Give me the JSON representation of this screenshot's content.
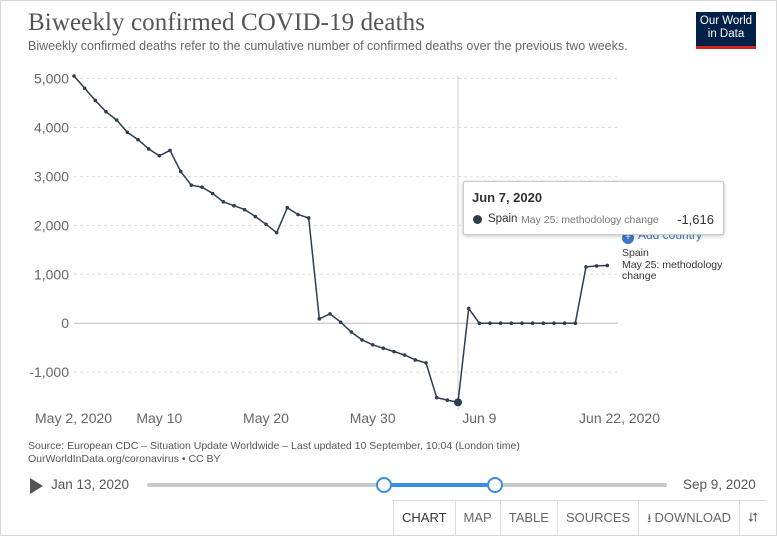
{
  "header": {
    "title": "Biweekly confirmed COVID-19 deaths",
    "subtitle": "Biweekly confirmed deaths refer to the cumulative number of confirmed deaths over the previous two weeks.",
    "logo_line1": "Our World",
    "logo_line2": "in Data"
  },
  "tooltip": {
    "date": "Jun 7, 2020",
    "series": "Spain",
    "note": "May 25: methodology change",
    "value": "-1,616"
  },
  "series_label": {
    "name": "Spain",
    "note_line1": "May 25: methodology",
    "note_line2": "change"
  },
  "add_country": "Add country",
  "source": {
    "line1": "Source: European CDC – Situation Update Worldwide – Last updated 10 September, 10:04 (London time)",
    "line2": "OurWorldInData.org/coronavirus • CC BY"
  },
  "timeline": {
    "start_label": "Jan 13, 2020",
    "end_label": "Sep 9, 2020",
    "range_start_fraction": 0.456,
    "range_end_fraction": 0.67
  },
  "tabs": [
    "CHART",
    "MAP",
    "TABLE",
    "SOURCES",
    "DOWNLOAD"
  ],
  "icons": {
    "play": "play-icon",
    "download": "download-icon",
    "share": "share-icon",
    "add": "plus-circle-icon"
  },
  "colors": {
    "line": "#2d3e50",
    "accent": "#3b8de0",
    "logo_bg": "#002147",
    "logo_bar": "#ce261e"
  },
  "chart_data": {
    "type": "line",
    "title": "Biweekly confirmed COVID-19 deaths",
    "xlabel": "",
    "ylabel": "",
    "x_ticks": [
      "May 2, 2020",
      "May 10",
      "May 20",
      "May 30",
      "Jun 9",
      "Jun 22, 2020"
    ],
    "y_ticks": [
      "5,000",
      "4,000",
      "3,000",
      "2,000",
      "1,000",
      "0",
      "-1,000"
    ],
    "ylim": [
      -1650,
      5050
    ],
    "x_range": [
      "2020-05-02",
      "2020-06-22"
    ],
    "grid": "horizontal",
    "series": [
      {
        "name": "Spain",
        "x": [
          "2020-05-02",
          "2020-05-03",
          "2020-05-04",
          "2020-05-05",
          "2020-05-06",
          "2020-05-07",
          "2020-05-08",
          "2020-05-09",
          "2020-05-10",
          "2020-05-11",
          "2020-05-12",
          "2020-05-13",
          "2020-05-14",
          "2020-05-15",
          "2020-05-16",
          "2020-05-17",
          "2020-05-18",
          "2020-05-19",
          "2020-05-20",
          "2020-05-21",
          "2020-05-22",
          "2020-05-23",
          "2020-05-24",
          "2020-05-25",
          "2020-05-26",
          "2020-05-27",
          "2020-05-28",
          "2020-05-29",
          "2020-05-30",
          "2020-05-31",
          "2020-06-01",
          "2020-06-02",
          "2020-06-03",
          "2020-06-04",
          "2020-06-05",
          "2020-06-06",
          "2020-06-07",
          "2020-06-08",
          "2020-06-09",
          "2020-06-10",
          "2020-06-11",
          "2020-06-12",
          "2020-06-13",
          "2020-06-14",
          "2020-06-15",
          "2020-06-16",
          "2020-06-17",
          "2020-06-18",
          "2020-06-19",
          "2020-06-20",
          "2020-06-21"
        ],
        "values": [
          5050,
          4800,
          4550,
          4320,
          4150,
          3900,
          3750,
          3560,
          3420,
          3530,
          3100,
          2820,
          2780,
          2650,
          2480,
          2400,
          2320,
          2180,
          2020,
          1850,
          2360,
          2220,
          2150,
          90,
          190,
          20,
          -180,
          -340,
          -440,
          -510,
          -580,
          -650,
          -750,
          -810,
          -1520,
          -1570,
          -1616,
          300,
          0,
          0,
          0,
          0,
          0,
          0,
          0,
          0,
          0,
          0,
          1150,
          1170,
          1180
        ]
      }
    ],
    "highlight": {
      "x": "2020-06-07",
      "value": -1616
    }
  }
}
